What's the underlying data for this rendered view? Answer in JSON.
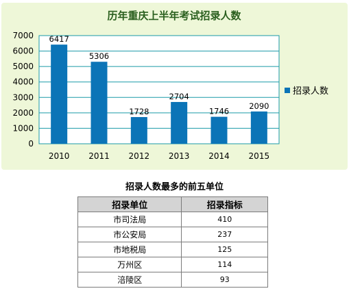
{
  "chart_data": {
    "type": "bar",
    "title": "历年重庆上半年考试招录人数",
    "categories": [
      "2010",
      "2011",
      "2012",
      "2013",
      "2014",
      "2015"
    ],
    "series": [
      {
        "name": "招录人数",
        "values": [
          6417,
          5306,
          1728,
          2704,
          1746,
          2090
        ]
      }
    ],
    "yticks": [
      "0",
      "1000",
      "2000",
      "3000",
      "4000",
      "5000",
      "6000",
      "7000"
    ],
    "ylim": [
      0,
      7000
    ],
    "grid": true,
    "legend_position": "right",
    "bar_color": "#0b74b7",
    "background_color": "#eef7d8",
    "plot_background_color": "#ffffff",
    "grid_color": "#1a9aa8",
    "title_color": "#2a5f1e"
  },
  "table": {
    "title": "招录人数最多的前五单位",
    "headers": [
      "招录单位",
      "招录指标"
    ],
    "rows": [
      {
        "unit": "市司法局",
        "quota": "410"
      },
      {
        "unit": "市公安局",
        "quota": "237"
      },
      {
        "unit": "市地税局",
        "quota": "125"
      },
      {
        "unit": "万州区",
        "quota": "114"
      },
      {
        "unit": "涪陵区",
        "quota": "93"
      }
    ]
  }
}
